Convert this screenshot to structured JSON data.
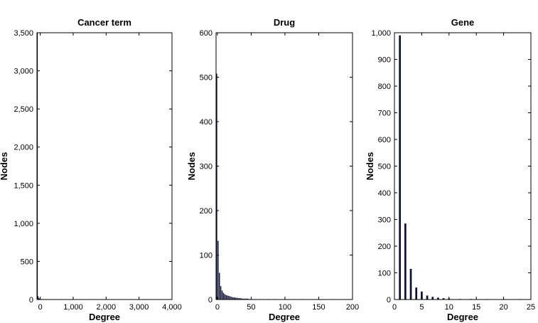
{
  "chart_data": [
    {
      "type": "bar",
      "title": "Cancer term",
      "xlabel": "Degree",
      "ylabel": "Nodes",
      "xlim": [
        -100,
        4000
      ],
      "ylim": [
        0,
        3500
      ],
      "xticks": [
        0,
        1000,
        2000,
        3000,
        4000
      ],
      "xtick_labels": [
        "0",
        "1,000",
        "2,000",
        "3,000",
        "4,000"
      ],
      "yticks": [
        0,
        500,
        1000,
        1500,
        2000,
        2500,
        3000,
        3500
      ],
      "ytick_labels": [
        "0",
        "500",
        "1,000",
        "1,500",
        "2,000",
        "2,500",
        "3,000",
        "3,500"
      ],
      "bar_color": "#0d1033",
      "bar_width": 14,
      "x": [
        -90,
        -70,
        -50,
        -30,
        -10,
        10,
        40,
        70,
        100,
        150,
        200,
        300,
        400,
        500,
        3200
      ],
      "values": [
        3500,
        45,
        20,
        12,
        8,
        6,
        5,
        4,
        3,
        3,
        2,
        2,
        1,
        1,
        1
      ]
    },
    {
      "type": "bar",
      "title": "Drug",
      "xlabel": "Degree",
      "ylabel": "Nodes",
      "xlim": [
        -2,
        200
      ],
      "ylim": [
        0,
        600
      ],
      "xticks": [
        0,
        50,
        100,
        150,
        200
      ],
      "xtick_labels": [
        "0",
        "50",
        "100",
        "150",
        "200"
      ],
      "yticks": [
        0,
        100,
        200,
        300,
        400,
        500,
        600
      ],
      "ytick_labels": [
        "0",
        "100",
        "200",
        "300",
        "400",
        "500",
        "600"
      ],
      "bar_color": "#0d1033",
      "bar_width": 1.5,
      "x": [
        -1,
        1,
        3,
        5,
        7,
        9,
        11,
        13,
        15,
        17,
        19,
        21,
        23,
        25,
        27,
        29,
        31,
        33,
        35,
        37,
        39,
        41,
        43,
        45,
        47,
        49,
        53,
        57,
        62,
        68,
        76,
        85,
        100,
        112,
        125,
        150,
        170
      ],
      "values": [
        508,
        132,
        60,
        30,
        20,
        15,
        12,
        10,
        9,
        8,
        7,
        6,
        5,
        5,
        4,
        4,
        3,
        3,
        3,
        2,
        2,
        2,
        2,
        2,
        1,
        1,
        1,
        1,
        1,
        1,
        1,
        1,
        1,
        1,
        1,
        1,
        1
      ]
    },
    {
      "type": "bar",
      "title": "Gene",
      "xlabel": "Degree",
      "ylabel": "Nodes",
      "xlim": [
        0,
        25
      ],
      "ylim": [
        0,
        1000
      ],
      "xticks": [
        0,
        5,
        10,
        15,
        20,
        25
      ],
      "xtick_labels": [
        "0",
        "5",
        "10",
        "15",
        "20",
        "25"
      ],
      "yticks": [
        0,
        100,
        200,
        300,
        400,
        500,
        600,
        700,
        800,
        900,
        1000
      ],
      "ytick_labels": [
        "0",
        "100",
        "200",
        "300",
        "400",
        "500",
        "600",
        "700",
        "800",
        "900",
        "1,000"
      ],
      "bar_color": "#0d1033",
      "bar_width": 0.35,
      "x": [
        1,
        2,
        3,
        4,
        5,
        6,
        7,
        8,
        9,
        10,
        12,
        14,
        17,
        20,
        23
      ],
      "values": [
        990,
        285,
        115,
        45,
        30,
        15,
        10,
        7,
        5,
        4,
        2,
        2,
        1,
        1,
        1
      ]
    }
  ]
}
